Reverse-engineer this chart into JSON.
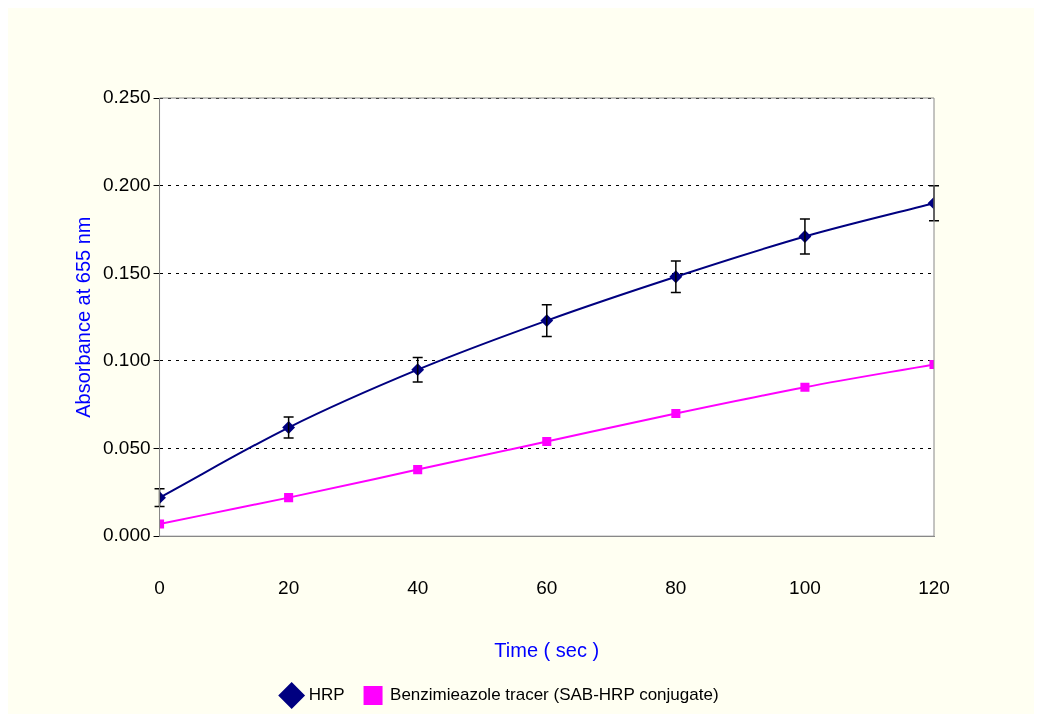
{
  "chart_data": {
    "type": "line",
    "xlabel": "Time ( sec )",
    "ylabel": "Absorbance at 655 nm",
    "xlim": [
      0,
      120
    ],
    "xticks": [
      0,
      20,
      40,
      60,
      80,
      100,
      120
    ],
    "ylim": [
      0,
      0.25
    ],
    "yticks": [
      {
        "value": 0,
        "label": "0.000"
      },
      {
        "value": 0.05,
        "label": "0.050"
      },
      {
        "value": 0.1,
        "label": "0.100"
      },
      {
        "value": 0.15,
        "label": "0.150"
      },
      {
        "value": 0.2,
        "label": "0.200"
      },
      {
        "value": 0.25,
        "label": "0.250"
      }
    ],
    "grid": "y",
    "legend": "bottom",
    "line_style": "solid",
    "x": [
      0,
      20,
      40,
      60,
      80,
      100,
      120
    ],
    "series": [
      {
        "name": "HRP",
        "color": "#000080",
        "marker": "diamond",
        "values": [
          0.022,
          0.062,
          0.095,
          0.123,
          0.148,
          0.171,
          0.19
        ],
        "errors": [
          0.005,
          0.006,
          0.007,
          0.009,
          0.009,
          0.01,
          0.01
        ]
      },
      {
        "name": "Benzimieazole tracer (SAB-HRP conjugate)",
        "color": "#ff00ff",
        "marker": "square",
        "values": [
          0.007,
          0.022,
          0.038,
          0.054,
          0.07,
          0.085,
          0.098
        ]
      }
    ]
  }
}
